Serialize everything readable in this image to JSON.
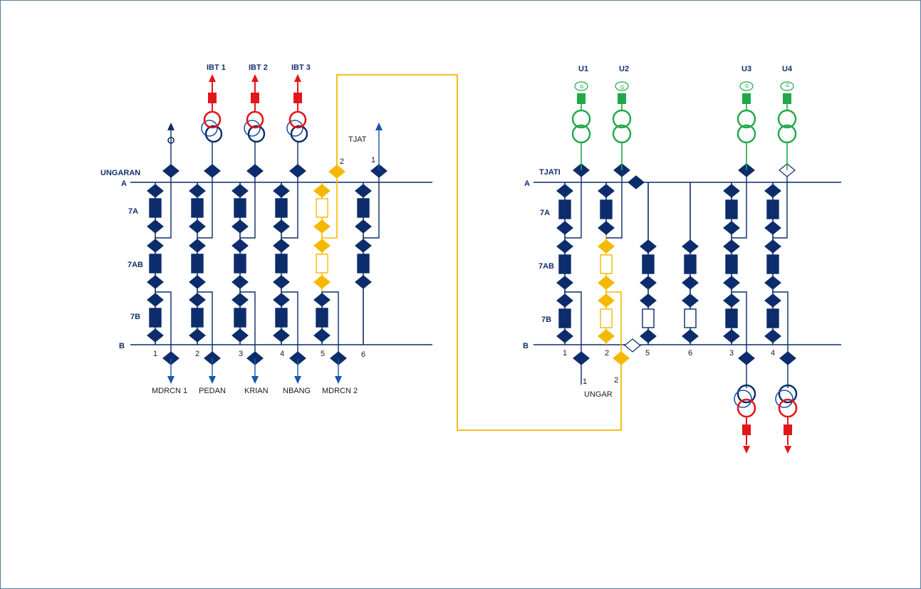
{
  "colors": {
    "navy": "#0c2c6c",
    "blue": "#1a56a8",
    "yellow": "#f5b800",
    "red": "#e3161b",
    "green": "#1fa84a",
    "frame": "#5b7aa0"
  },
  "left": {
    "substation": "UNGARAN",
    "bus_a": "A",
    "bus_b": "B",
    "breaker_labels": [
      "7A",
      "7AB",
      "7B"
    ],
    "transformers": [
      "IBT 1",
      "IBT 2",
      "IBT 3"
    ],
    "line_top_label": "TJAT",
    "top_numbers": [
      "2",
      "1"
    ],
    "bay_numbers": [
      "1",
      "2",
      "3",
      "4",
      "5",
      "6"
    ],
    "feeders": [
      "MDRCN 1",
      "PEDAN",
      "KRIAN",
      "NBANG",
      "MDRCN 2"
    ]
  },
  "right": {
    "substation": "TJATI",
    "bus_a": "A",
    "bus_b": "B",
    "breaker_labels": [
      "7A",
      "7AB",
      "7B"
    ],
    "units": [
      "U1",
      "U2",
      "U3",
      "U4"
    ],
    "generator_symbol": "G",
    "bay_numbers": [
      "1",
      "2",
      "5",
      "6",
      "3",
      "4"
    ],
    "line_numbers": [
      "1",
      "2"
    ],
    "line_label": "UNGAR"
  }
}
